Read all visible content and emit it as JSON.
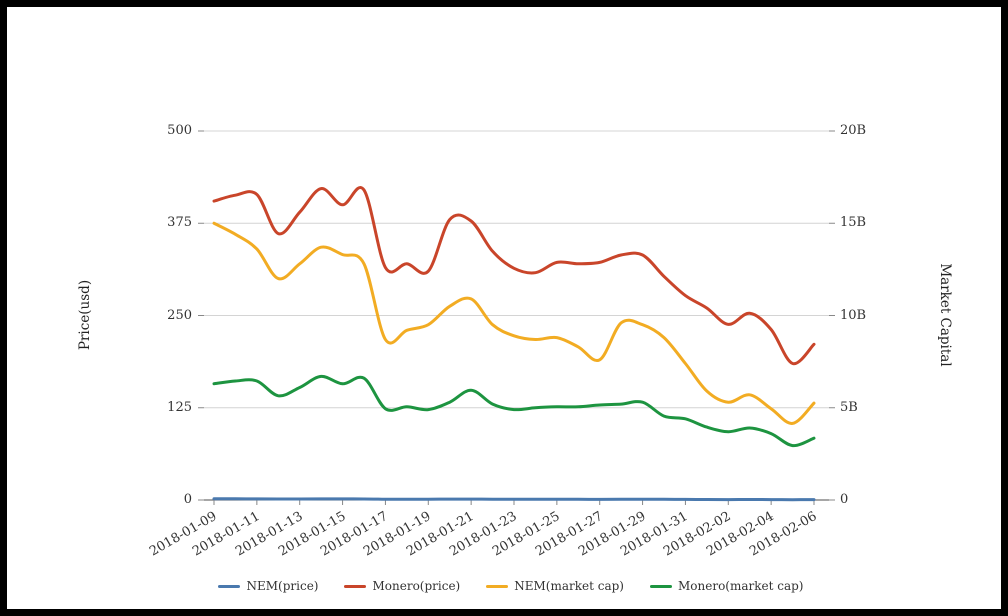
{
  "chart": {
    "title": "",
    "left_axis": {
      "title": "Price(usd)",
      "tick_labels": [
        "500",
        "375",
        "250",
        "125",
        "0"
      ],
      "tick_values": [
        500,
        375,
        250,
        125,
        0
      ]
    },
    "right_axis": {
      "title": "Market Capital",
      "tick_labels": [
        "20B",
        "15B",
        "10B",
        "5B",
        "0"
      ],
      "tick_values": [
        20,
        15,
        10,
        5,
        0
      ]
    },
    "x_axis": {
      "tick_labels": [
        "2018-01-09",
        "2018-01-11",
        "2018-01-13",
        "2018-01-15",
        "2018-01-17",
        "2018-01-19",
        "2018-01-21",
        "2018-01-23",
        "2018-01-25",
        "2018-01-27",
        "2018-01-29",
        "2018-01-31",
        "2018-02-02",
        "2018-02-04",
        "2018-02-06"
      ],
      "tick_every": 2
    },
    "legend": [
      "NEM(price)",
      "Monero(price)",
      "NEM(market cap)",
      "Monero(market cap)"
    ],
    "colors": {
      "nem_price": "#4a79ae",
      "monero_price": "#c9452a",
      "nem_market_cap": "#f2ac23",
      "monero_market_cap": "#1d9440",
      "gridline": "#d4d4d4",
      "axis_line": "#4d4d4d",
      "tick_mark": "#888888",
      "label_text": "#333333"
    }
  },
  "chart_data": {
    "type": "line",
    "smooth": true,
    "grid": "horizontal",
    "legend_position": "bottom",
    "x": [
      "2018-01-09",
      "2018-01-10",
      "2018-01-11",
      "2018-01-12",
      "2018-01-13",
      "2018-01-14",
      "2018-01-15",
      "2018-01-16",
      "2018-01-17",
      "2018-01-18",
      "2018-01-19",
      "2018-01-20",
      "2018-01-21",
      "2018-01-22",
      "2018-01-23",
      "2018-01-24",
      "2018-01-25",
      "2018-01-26",
      "2018-01-27",
      "2018-01-28",
      "2018-01-29",
      "2018-01-30",
      "2018-01-31",
      "2018-02-01",
      "2018-02-02",
      "2018-02-03",
      "2018-02-04",
      "2018-02-05",
      "2018-02-06"
    ],
    "ylabel_left": "Price(usd)",
    "ylabel_right": "Market Capital",
    "ylim_left": [
      0,
      500
    ],
    "ylim_right_billions": [
      0,
      20
    ],
    "series": [
      {
        "name": "NEM(price)",
        "axis": "left",
        "unit": "usd",
        "color": "#4a79ae",
        "values": [
          1.67,
          1.6,
          1.51,
          1.33,
          1.42,
          1.52,
          1.48,
          1.42,
          0.97,
          1.02,
          1.06,
          1.17,
          1.21,
          1.06,
          0.99,
          0.97,
          0.98,
          0.92,
          0.84,
          1.07,
          1.06,
          0.98,
          0.82,
          0.66,
          0.59,
          0.63,
          0.55,
          0.46,
          0.58
        ]
      },
      {
        "name": "Monero(price)",
        "axis": "left",
        "unit": "usd",
        "color": "#c9452a",
        "values": [
          405,
          413,
          414,
          361,
          390,
          422,
          400,
          420,
          315,
          320,
          310,
          380,
          378,
          337,
          314,
          308,
          322,
          320,
          322,
          332,
          332,
          303,
          277,
          260,
          238,
          253,
          231,
          185,
          211
        ]
      },
      {
        "name": "NEM(market cap)",
        "axis": "right",
        "unit": "billion usd",
        "color": "#f2ac23",
        "values": [
          15.0,
          14.4,
          13.6,
          12.0,
          12.8,
          13.7,
          13.3,
          12.8,
          8.7,
          9.2,
          9.5,
          10.5,
          10.9,
          9.5,
          8.9,
          8.7,
          8.8,
          8.3,
          7.6,
          9.6,
          9.5,
          8.8,
          7.4,
          5.9,
          5.3,
          5.7,
          4.95,
          4.15,
          5.25
        ]
      },
      {
        "name": "Monero(market cap)",
        "axis": "right",
        "unit": "billion usd",
        "color": "#1d9440",
        "values": [
          6.3,
          6.45,
          6.45,
          5.65,
          6.1,
          6.7,
          6.3,
          6.6,
          4.95,
          5.05,
          4.9,
          5.3,
          5.95,
          5.2,
          4.9,
          5.0,
          5.05,
          5.05,
          5.15,
          5.2,
          5.3,
          4.55,
          4.4,
          3.95,
          3.7,
          3.9,
          3.6,
          2.95,
          3.35
        ]
      }
    ]
  }
}
